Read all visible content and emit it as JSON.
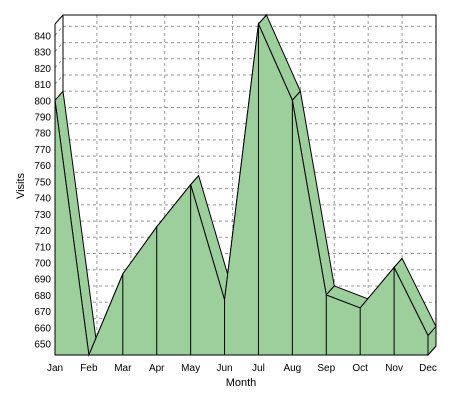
{
  "chart_data": {
    "type": "area",
    "categories": [
      "Jan",
      "Feb",
      "Mar",
      "Apr",
      "May",
      "Jun",
      "Jul",
      "Aug",
      "Sep",
      "Oct",
      "Nov",
      "Dec"
    ],
    "series": [
      {
        "values": [
          800,
          643,
          693,
          722,
          748,
          677,
          847,
          800,
          680,
          672,
          697,
          655
        ]
      }
    ],
    "xlabel": "Month",
    "ylabel": "Visits",
    "ylim": [
      643,
      847
    ],
    "yticks": [
      650,
      660,
      670,
      680,
      690,
      700,
      710,
      720,
      730,
      740,
      750,
      760,
      770,
      780,
      790,
      800,
      810,
      820,
      830,
      840
    ],
    "grid": true,
    "style": "3d",
    "colors": {
      "fill": "#9ccf9c",
      "stroke": "#000000",
      "grid": "#999999"
    }
  }
}
